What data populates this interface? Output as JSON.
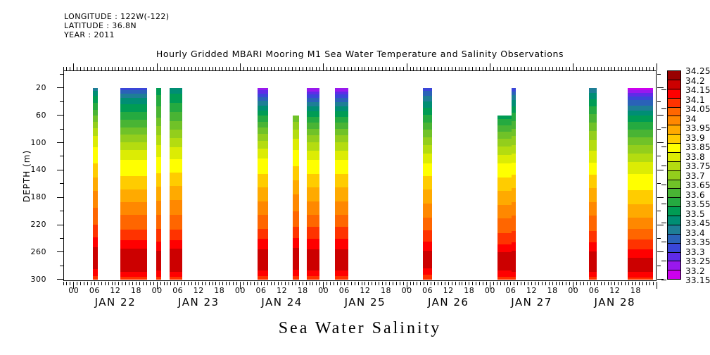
{
  "header": {
    "longitude": "LONGITUDE : 122W(-122)",
    "latitude": "LATITUDE : 36.8N",
    "year": "YEAR : 2011",
    "title": "Hourly Gridded MBARI Mooring M1 Sea Water Temperature and Salinity Observations"
  },
  "chart_data": {
    "type": "heatmap",
    "title": "Hourly Gridded MBARI Mooring M1 Sea Water Temperature and Salinity Observations",
    "bottom_title": "Sea Water Salinity",
    "ylabel": "DEPTH (m)",
    "x_axis": {
      "day_labels": [
        "JAN 22",
        "JAN 23",
        "JAN 24",
        "JAN 25",
        "JAN 26",
        "JAN 27",
        "JAN 28"
      ],
      "hour_label_texts": [
        "00",
        "06",
        "12",
        "18"
      ],
      "label_every_hours": 6,
      "major_tick_every_hours": 24,
      "minor_tick_every_hours": 1,
      "axis_start_hour": -3,
      "axis_end_hour": 168
    },
    "y_axis": {
      "label": "DEPTH (m)",
      "tick_labels": [
        "20",
        "60",
        "100",
        "140",
        "180",
        "220",
        "260",
        "300"
      ],
      "labeled_depths": [
        20,
        60,
        100,
        140,
        180,
        220,
        260,
        300
      ],
      "minor_tick_depths": [
        0,
        40,
        80,
        120,
        160,
        200,
        240,
        280
      ],
      "data_top_depth": 20,
      "data_bottom_depth": 300
    },
    "colorbar": {
      "min": 33.15,
      "max": 34.25,
      "step": 0.05,
      "labels_top_to_bottom": [
        "34.25",
        "34.2",
        "34.15",
        "34.1",
        "34.05",
        "34",
        "33.95",
        "33.9",
        "33.85",
        "33.8",
        "33.75",
        "33.7",
        "33.65",
        "33.6",
        "33.55",
        "33.5",
        "33.45",
        "33.4",
        "33.35",
        "33.3",
        "33.25",
        "33.2",
        "33.15"
      ],
      "colors_low_to_high": [
        "#CC00EE",
        "#9918EE",
        "#5F2BE8",
        "#3A46D8",
        "#2A62B8",
        "#1E7E96",
        "#008E74",
        "#009C54",
        "#25AA40",
        "#49B434",
        "#70C228",
        "#93CE1C",
        "#B4DC10",
        "#DCEC04",
        "#FFFF00",
        "#FFCC00",
        "#FFAA00",
        "#FF8800",
        "#FF6600",
        "#FF3300",
        "#FF0000",
        "#CC0000",
        "#990000"
      ]
    },
    "columns": [
      {
        "id": "jan22-06",
        "start_hour": 5.6,
        "end_hour": 7.0,
        "top_depth": 20,
        "profile": [
          [
            20,
            33.42
          ],
          [
            32,
            33.51
          ],
          [
            48,
            33.58
          ],
          [
            65,
            33.68
          ],
          [
            80,
            33.76
          ],
          [
            95,
            33.82
          ],
          [
            110,
            33.86
          ],
          [
            130,
            33.9
          ],
          [
            150,
            33.95
          ],
          [
            170,
            34.0
          ],
          [
            195,
            34.05
          ],
          [
            215,
            34.09
          ],
          [
            230,
            34.13
          ],
          [
            245,
            34.17
          ],
          [
            255,
            34.21
          ],
          [
            282,
            34.21
          ],
          [
            292,
            34.16
          ],
          [
            300,
            34.13
          ]
        ]
      },
      {
        "id": "jan22-afternoon",
        "start_hour": 13.5,
        "end_hour": 21.1,
        "top_depth": 20,
        "profile": [
          [
            20,
            33.33
          ],
          [
            35,
            33.46
          ],
          [
            50,
            33.53
          ],
          [
            70,
            33.62
          ],
          [
            90,
            33.71
          ],
          [
            105,
            33.78
          ],
          [
            120,
            33.84
          ],
          [
            140,
            33.88
          ],
          [
            160,
            33.93
          ],
          [
            180,
            33.98
          ],
          [
            200,
            34.04
          ],
          [
            220,
            34.08
          ],
          [
            235,
            34.13
          ],
          [
            248,
            34.17
          ],
          [
            258,
            34.22
          ],
          [
            285,
            34.22
          ],
          [
            293,
            34.16
          ],
          [
            300,
            34.13
          ]
        ]
      },
      {
        "id": "jan23-00",
        "start_hour": 23.7,
        "end_hour": 25.3,
        "top_depth": 20,
        "profile": [
          [
            20,
            33.52
          ],
          [
            40,
            33.58
          ],
          [
            60,
            33.64
          ],
          [
            80,
            33.72
          ],
          [
            100,
            33.79
          ],
          [
            120,
            33.85
          ],
          [
            140,
            33.89
          ],
          [
            160,
            33.94
          ],
          [
            180,
            33.99
          ],
          [
            205,
            34.05
          ],
          [
            222,
            34.09
          ],
          [
            237,
            34.13
          ],
          [
            250,
            34.17
          ],
          [
            260,
            34.21
          ],
          [
            285,
            34.21
          ],
          [
            293,
            34.16
          ],
          [
            300,
            34.13
          ]
        ]
      },
      {
        "id": "jan23-06",
        "start_hour": 27.7,
        "end_hour": 31.2,
        "top_depth": 20,
        "profile": [
          [
            20,
            33.47
          ],
          [
            35,
            33.53
          ],
          [
            55,
            33.6
          ],
          [
            75,
            33.68
          ],
          [
            95,
            33.76
          ],
          [
            115,
            33.83
          ],
          [
            135,
            33.88
          ],
          [
            155,
            33.93
          ],
          [
            175,
            33.98
          ],
          [
            200,
            34.04
          ],
          [
            220,
            34.08
          ],
          [
            235,
            34.13
          ],
          [
            248,
            34.17
          ],
          [
            258,
            34.22
          ],
          [
            285,
            34.22
          ],
          [
            293,
            34.16
          ],
          [
            300,
            34.13
          ]
        ]
      },
      {
        "id": "jan24-06",
        "start_hour": 53.0,
        "end_hour": 56.0,
        "top_depth": 20,
        "profile": [
          [
            20,
            33.22
          ],
          [
            30,
            33.33
          ],
          [
            42,
            33.43
          ],
          [
            55,
            33.52
          ],
          [
            72,
            33.62
          ],
          [
            90,
            33.72
          ],
          [
            108,
            33.8
          ],
          [
            125,
            33.86
          ],
          [
            145,
            33.9
          ],
          [
            165,
            33.95
          ],
          [
            185,
            34.0
          ],
          [
            205,
            34.05
          ],
          [
            222,
            34.09
          ],
          [
            237,
            34.14
          ],
          [
            250,
            34.18
          ],
          [
            260,
            34.22
          ],
          [
            283,
            34.22
          ],
          [
            292,
            34.16
          ],
          [
            300,
            34.13
          ]
        ]
      },
      {
        "id": "jan24-16",
        "start_hour": 63.2,
        "end_hour": 64.9,
        "top_depth": 60,
        "profile": [
          [
            60,
            33.66
          ],
          [
            75,
            33.73
          ],
          [
            90,
            33.79
          ],
          [
            110,
            33.85
          ],
          [
            130,
            33.89
          ],
          [
            150,
            33.94
          ],
          [
            170,
            33.99
          ],
          [
            195,
            34.04
          ],
          [
            215,
            34.08
          ],
          [
            232,
            34.13
          ],
          [
            246,
            34.17
          ],
          [
            256,
            34.21
          ],
          [
            283,
            34.21
          ],
          [
            292,
            34.16
          ],
          [
            300,
            34.13
          ]
        ]
      },
      {
        "id": "jan24-20",
        "start_hour": 67.1,
        "end_hour": 70.8,
        "top_depth": 20,
        "profile": [
          [
            20,
            33.2
          ],
          [
            30,
            33.31
          ],
          [
            42,
            33.42
          ],
          [
            55,
            33.51
          ],
          [
            72,
            33.61
          ],
          [
            90,
            33.71
          ],
          [
            108,
            33.79
          ],
          [
            125,
            33.85
          ],
          [
            145,
            33.9
          ],
          [
            165,
            33.95
          ],
          [
            185,
            34.0
          ],
          [
            205,
            34.05
          ],
          [
            222,
            34.1
          ],
          [
            237,
            34.14
          ],
          [
            250,
            34.18
          ],
          [
            260,
            34.22
          ],
          [
            283,
            34.22
          ],
          [
            292,
            34.16
          ],
          [
            300,
            34.13
          ]
        ]
      },
      {
        "id": "jan25-05",
        "start_hour": 75.3,
        "end_hour": 79.1,
        "top_depth": 20,
        "profile": [
          [
            20,
            33.2
          ],
          [
            30,
            33.31
          ],
          [
            42,
            33.42
          ],
          [
            55,
            33.51
          ],
          [
            72,
            33.61
          ],
          [
            90,
            33.71
          ],
          [
            108,
            33.79
          ],
          [
            125,
            33.85
          ],
          [
            145,
            33.9
          ],
          [
            165,
            33.95
          ],
          [
            185,
            34.0
          ],
          [
            205,
            34.05
          ],
          [
            222,
            34.1
          ],
          [
            237,
            34.14
          ],
          [
            250,
            34.18
          ],
          [
            260,
            34.22
          ],
          [
            283,
            34.22
          ],
          [
            292,
            34.16
          ],
          [
            300,
            34.13
          ]
        ]
      },
      {
        "id": "jan26-06",
        "start_hour": 100.6,
        "end_hour": 103.4,
        "top_depth": 20,
        "profile": [
          [
            20,
            33.32
          ],
          [
            33,
            33.42
          ],
          [
            48,
            33.5
          ],
          [
            65,
            33.58
          ],
          [
            85,
            33.67
          ],
          [
            105,
            33.76
          ],
          [
            122,
            33.83
          ],
          [
            140,
            33.88
          ],
          [
            160,
            33.93
          ],
          [
            180,
            33.98
          ],
          [
            200,
            34.03
          ],
          [
            218,
            34.07
          ],
          [
            234,
            34.12
          ],
          [
            247,
            34.16
          ],
          [
            257,
            34.2
          ],
          [
            283,
            34.2
          ],
          [
            292,
            34.15
          ],
          [
            300,
            34.12
          ]
        ]
      },
      {
        "id": "jan27-main",
        "start_hour": 122.1,
        "end_hour": 126.2,
        "top_depth": 60,
        "profile": [
          [
            60,
            33.52
          ],
          [
            70,
            33.58
          ],
          [
            85,
            33.66
          ],
          [
            100,
            33.73
          ],
          [
            115,
            33.79
          ],
          [
            130,
            33.85
          ],
          [
            150,
            33.9
          ],
          [
            170,
            33.95
          ],
          [
            190,
            34.0
          ],
          [
            210,
            34.05
          ],
          [
            228,
            34.09
          ],
          [
            242,
            34.13
          ],
          [
            253,
            34.17
          ],
          [
            262,
            34.21
          ],
          [
            285,
            34.21
          ],
          [
            293,
            34.16
          ],
          [
            300,
            34.13
          ]
        ]
      },
      {
        "id": "jan27-sliver",
        "start_hour": 126.2,
        "end_hour": 127.5,
        "top_depth": 20,
        "profile": [
          [
            20,
            33.31
          ],
          [
            30,
            33.4
          ],
          [
            42,
            33.48
          ],
          [
            58,
            33.56
          ],
          [
            75,
            33.63
          ],
          [
            90,
            33.7
          ],
          [
            105,
            33.76
          ],
          [
            120,
            33.82
          ],
          [
            135,
            33.87
          ],
          [
            150,
            33.91
          ],
          [
            170,
            33.96
          ],
          [
            190,
            34.01
          ],
          [
            210,
            34.06
          ],
          [
            228,
            34.1
          ],
          [
            242,
            34.14
          ],
          [
            253,
            34.18
          ],
          [
            262,
            34.22
          ],
          [
            285,
            34.22
          ],
          [
            293,
            34.16
          ],
          [
            300,
            34.13
          ]
        ]
      },
      {
        "id": "jan28-05",
        "start_hour": 148.5,
        "end_hour": 150.7,
        "top_depth": 20,
        "profile": [
          [
            20,
            33.41
          ],
          [
            32,
            33.48
          ],
          [
            46,
            33.55
          ],
          [
            62,
            33.62
          ],
          [
            80,
            33.69
          ],
          [
            98,
            33.76
          ],
          [
            115,
            33.81
          ],
          [
            132,
            33.86
          ],
          [
            150,
            33.91
          ],
          [
            170,
            33.96
          ],
          [
            190,
            34.01
          ],
          [
            210,
            34.06
          ],
          [
            228,
            34.1
          ],
          [
            242,
            34.14
          ],
          [
            254,
            34.18
          ],
          [
            263,
            34.22
          ],
          [
            285,
            34.22
          ],
          [
            293,
            34.16
          ],
          [
            300,
            34.13
          ]
        ]
      },
      {
        "id": "jan28-evening",
        "start_hour": 159.6,
        "end_hour": 166.9,
        "top_depth": 20,
        "profile": [
          [
            20,
            33.17
          ],
          [
            27,
            33.26
          ],
          [
            36,
            33.34
          ],
          [
            48,
            33.42
          ],
          [
            60,
            33.5
          ],
          [
            75,
            33.58
          ],
          [
            92,
            33.65
          ],
          [
            110,
            33.73
          ],
          [
            128,
            33.8
          ],
          [
            145,
            33.85
          ],
          [
            165,
            33.89
          ],
          [
            185,
            33.94
          ],
          [
            205,
            33.99
          ],
          [
            222,
            34.04
          ],
          [
            238,
            34.09
          ],
          [
            250,
            34.13
          ],
          [
            260,
            34.17
          ],
          [
            270,
            34.21
          ],
          [
            287,
            34.21
          ],
          [
            294,
            34.16
          ],
          [
            300,
            34.13
          ]
        ]
      }
    ]
  }
}
